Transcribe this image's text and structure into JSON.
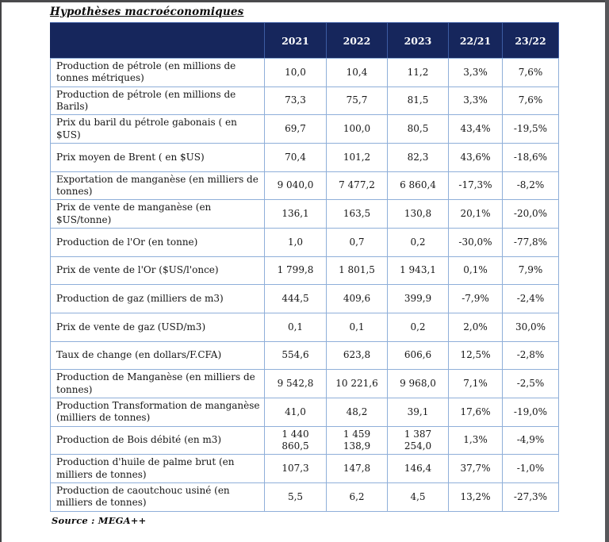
{
  "title": "Hypothèses macroéconomiques",
  "source": "Source : MEGA++",
  "colors": {
    "header_bg": "#16265c",
    "header_text": "#ffffff",
    "grid_border": "#8fafd9",
    "body_text": "#161616"
  },
  "table": {
    "columns": [
      "",
      "2021",
      "2022",
      "2023",
      "22/21",
      "23/22"
    ],
    "rows": [
      {
        "label": "Production de pétrole (en millions de tonnes métriques)",
        "values": [
          "10,0",
          "10,4",
          "11,2",
          "3,3%",
          "7,6%"
        ]
      },
      {
        "label": "Production de pétrole (en millions de Barils)",
        "values": [
          "73,3",
          "75,7",
          "81,5",
          "3,3%",
          "7,6%"
        ]
      },
      {
        "label": "Prix du baril du pétrole gabonais ( en $US)",
        "values": [
          "69,7",
          "100,0",
          "80,5",
          "43,4%",
          "-19,5%"
        ]
      },
      {
        "label": "Prix moyen de Brent ( en $US)",
        "values": [
          "70,4",
          "101,2",
          "82,3",
          "43,6%",
          "-18,6%"
        ]
      },
      {
        "label": "Exportation de manganèse (en milliers de tonnes)",
        "values": [
          "9 040,0",
          "7 477,2",
          "6 860,4",
          "-17,3%",
          "-8,2%"
        ]
      },
      {
        "label": "Prix de vente de manganèse (en $US/tonne)",
        "values": [
          "136,1",
          "163,5",
          "130,8",
          "20,1%",
          "-20,0%"
        ]
      },
      {
        "label": "Production de l'Or (en tonne)",
        "values": [
          "1,0",
          "0,7",
          "0,2",
          "-30,0%",
          "-77,8%"
        ]
      },
      {
        "label": "Prix de vente de l'Or ($US/l'once)",
        "values": [
          "1 799,8",
          "1 801,5",
          "1 943,1",
          "0,1%",
          "7,9%"
        ]
      },
      {
        "label": "Production de gaz  (milliers de m3)",
        "values": [
          "444,5",
          "409,6",
          "399,9",
          "-7,9%",
          "-2,4%"
        ]
      },
      {
        "label": "Prix de vente de gaz (USD/m3)",
        "values": [
          "0,1",
          "0,1",
          "0,2",
          "2,0%",
          "30,0%"
        ]
      },
      {
        "label": "Taux de change (en dollars/F.CFA)",
        "values": [
          "554,6",
          "623,8",
          "606,6",
          "12,5%",
          "-2,8%"
        ]
      },
      {
        "label": "Production de Manganèse (en milliers de tonnes)",
        "values": [
          "9 542,8",
          "10 221,6",
          "9 968,0",
          "7,1%",
          "-2,5%"
        ]
      },
      {
        "label": "Production Transformation de manganèse (milliers de tonnes)",
        "values": [
          "41,0",
          "48,2",
          "39,1",
          "17,6%",
          "-19,0%"
        ]
      },
      {
        "label": "Production de Bois débité (en m3)",
        "values": [
          "1 440 860,5",
          "1 459 138,9",
          "1 387 254,0",
          "1,3%",
          "-4,9%"
        ]
      },
      {
        "label": "Production d'huile de palme brut  (en milliers de tonnes)",
        "values": [
          "107,3",
          "147,8",
          "146,4",
          "37,7%",
          "-1,0%"
        ]
      },
      {
        "label": "Production de caoutchouc usiné (en milliers de tonnes)",
        "values": [
          "5,5",
          "6,2",
          "4,5",
          "13,2%",
          "-27,3%"
        ]
      }
    ]
  }
}
